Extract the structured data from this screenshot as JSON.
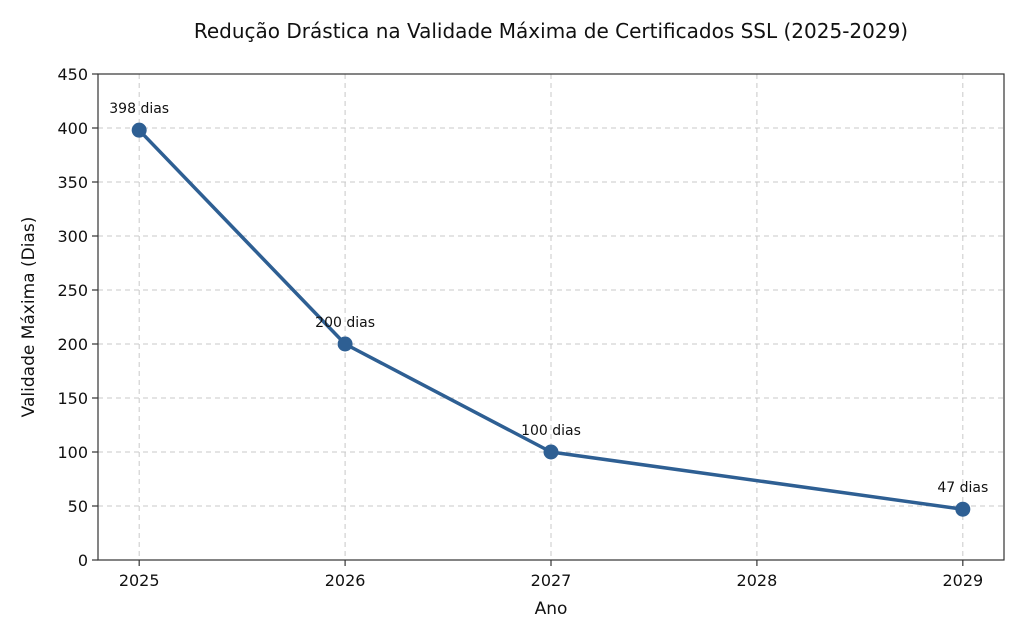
{
  "chart_data": {
    "type": "line",
    "title": "Redução Drástica na Validade Máxima de Certificados SSL (2025-2029)",
    "xlabel": "Ano",
    "ylabel": "Validade Máxima (Dias)",
    "x_ticks": [
      "2025",
      "2026",
      "2027",
      "2028",
      "2029"
    ],
    "y_ticks": [
      "0",
      "50",
      "100",
      "150",
      "200",
      "250",
      "300",
      "350",
      "400",
      "450"
    ],
    "xlim": [
      2024.8,
      2029.2
    ],
    "ylim": [
      0,
      450
    ],
    "grid": true,
    "series": [
      {
        "color": "#2e5f93",
        "points": [
          {
            "x": 2025,
            "y": 398,
            "label": "398 dias"
          },
          {
            "x": 2026,
            "y": 200,
            "label": "200 dias"
          },
          {
            "x": 2027,
            "y": 100,
            "label": "100 dias"
          },
          {
            "x": 2029,
            "y": 47,
            "label": "47 dias"
          }
        ]
      }
    ]
  }
}
